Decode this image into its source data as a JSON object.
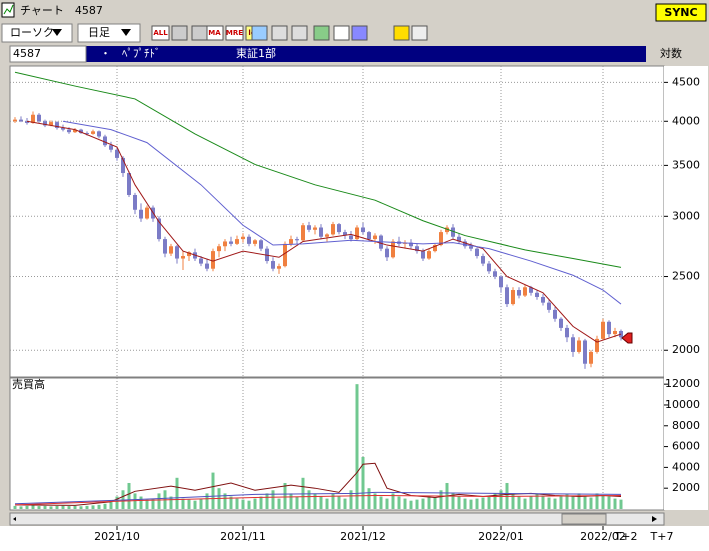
{
  "window": {
    "title": "チャート　4587",
    "sync": "SYNC"
  },
  "toolbar": {
    "chart_kind": "ローソク",
    "period": "日足",
    "icons": [
      "ALL",
      "MA",
      "MRE",
      "log"
    ]
  },
  "info": {
    "code": "4587",
    "name": "・　ﾍﾟﾌﾟﾁﾄﾞ",
    "market": "東証1部",
    "scale": "対数"
  },
  "future_ticks": [
    "T+2",
    "T+7"
  ],
  "chart_data": [
    {
      "type": "candlestick",
      "log": true,
      "grid": true,
      "up_color": "#f08040",
      "down_color": "#7b7bc6",
      "categories": [
        null,
        null,
        null,
        null,
        null,
        null,
        null,
        null,
        null,
        null,
        null,
        null,
        null,
        null,
        null,
        null,
        null,
        "2021/10",
        null,
        null,
        null,
        null,
        null,
        null,
        null,
        null,
        null,
        null,
        null,
        null,
        null,
        null,
        null,
        null,
        null,
        null,
        null,
        null,
        "2021/11",
        null,
        null,
        null,
        null,
        null,
        null,
        null,
        null,
        null,
        null,
        null,
        null,
        null,
        null,
        null,
        null,
        null,
        null,
        null,
        "2021/12",
        null,
        null,
        null,
        null,
        null,
        null,
        null,
        null,
        null,
        null,
        null,
        null,
        null,
        null,
        null,
        null,
        null,
        null,
        null,
        null,
        null,
        null,
        "2022/01",
        null,
        null,
        null,
        null,
        null,
        null,
        null,
        null,
        null,
        null,
        null,
        null,
        null,
        null,
        null,
        null,
        "2022/02",
        null,
        null,
        null
      ],
      "ohlc": [
        [
          4000,
          4050,
          3980,
          4020
        ],
        [
          4020,
          4060,
          3990,
          4000
        ],
        [
          4000,
          4040,
          3960,
          3980
        ],
        [
          3980,
          4120,
          3970,
          4080
        ],
        [
          4080,
          4100,
          3980,
          4000
        ],
        [
          4000,
          4020,
          3930,
          3950
        ],
        [
          3950,
          4010,
          3940,
          3990
        ],
        [
          3990,
          4000,
          3900,
          3920
        ],
        [
          3920,
          3960,
          3880,
          3900
        ],
        [
          3900,
          3930,
          3850,
          3870
        ],
        [
          3870,
          3920,
          3860,
          3900
        ],
        [
          3900,
          3910,
          3850,
          3860
        ],
        [
          3860,
          3880,
          3830,
          3850
        ],
        [
          3850,
          3900,
          3840,
          3880
        ],
        [
          3880,
          3890,
          3800,
          3820
        ],
        [
          3820,
          3840,
          3700,
          3720
        ],
        [
          3720,
          3760,
          3640,
          3670
        ],
        [
          3670,
          3690,
          3550,
          3580
        ],
        [
          3580,
          3600,
          3380,
          3420
        ],
        [
          3420,
          3440,
          3180,
          3200
        ],
        [
          3200,
          3220,
          3020,
          3060
        ],
        [
          3060,
          3120,
          2950,
          2980
        ],
        [
          2980,
          3100,
          2970,
          3080
        ],
        [
          3080,
          3100,
          2950,
          2980
        ],
        [
          2980,
          3000,
          2780,
          2800
        ],
        [
          2800,
          2820,
          2650,
          2680
        ],
        [
          2680,
          2760,
          2660,
          2740
        ],
        [
          2740,
          2750,
          2600,
          2640
        ],
        [
          2640,
          2700,
          2550,
          2660
        ],
        [
          2660,
          2700,
          2620,
          2690
        ],
        [
          2690,
          2720,
          2620,
          2640
        ],
        [
          2640,
          2660,
          2580,
          2600
        ],
        [
          2600,
          2640,
          2540,
          2560
        ],
        [
          2560,
          2720,
          2540,
          2700
        ],
        [
          2700,
          2760,
          2650,
          2740
        ],
        [
          2740,
          2800,
          2700,
          2780
        ],
        [
          2780,
          2820,
          2740,
          2760
        ],
        [
          2760,
          2830,
          2750,
          2800
        ],
        [
          2800,
          2850,
          2770,
          2820
        ],
        [
          2820,
          2840,
          2740,
          2760
        ],
        [
          2760,
          2800,
          2740,
          2790
        ],
        [
          2790,
          2800,
          2700,
          2720
        ],
        [
          2720,
          2740,
          2600,
          2620
        ],
        [
          2620,
          2650,
          2540,
          2560
        ],
        [
          2560,
          2600,
          2520,
          2580
        ],
        [
          2580,
          2780,
          2570,
          2760
        ],
        [
          2760,
          2830,
          2740,
          2800
        ],
        [
          2800,
          2820,
          2760,
          2790
        ],
        [
          2790,
          2940,
          2780,
          2920
        ],
        [
          2920,
          2950,
          2860,
          2880
        ],
        [
          2880,
          2920,
          2840,
          2900
        ],
        [
          2900,
          2930,
          2800,
          2820
        ],
        [
          2820,
          2850,
          2780,
          2840
        ],
        [
          2840,
          2950,
          2830,
          2930
        ],
        [
          2930,
          2940,
          2840,
          2860
        ],
        [
          2860,
          2880,
          2800,
          2830
        ],
        [
          2830,
          2870,
          2780,
          2800
        ],
        [
          2800,
          2920,
          2790,
          2900
        ],
        [
          2900,
          2940,
          2840,
          2860
        ],
        [
          2860,
          2870,
          2780,
          2800
        ],
        [
          2800,
          2850,
          2760,
          2830
        ],
        [
          2830,
          2840,
          2700,
          2720
        ],
        [
          2720,
          2740,
          2620,
          2650
        ],
        [
          2650,
          2800,
          2640,
          2780
        ],
        [
          2780,
          2820,
          2740,
          2760
        ],
        [
          2760,
          2790,
          2720,
          2770
        ],
        [
          2770,
          2800,
          2720,
          2740
        ],
        [
          2740,
          2760,
          2680,
          2700
        ],
        [
          2700,
          2720,
          2620,
          2640
        ],
        [
          2640,
          2720,
          2630,
          2700
        ],
        [
          2700,
          2760,
          2690,
          2750
        ],
        [
          2750,
          2880,
          2740,
          2860
        ],
        [
          2860,
          2920,
          2840,
          2900
        ],
        [
          2900,
          2930,
          2800,
          2820
        ],
        [
          2820,
          2850,
          2760,
          2780
        ],
        [
          2780,
          2800,
          2720,
          2740
        ],
        [
          2740,
          2770,
          2700,
          2720
        ],
        [
          2720,
          2730,
          2640,
          2660
        ],
        [
          2660,
          2680,
          2580,
          2600
        ],
        [
          2600,
          2620,
          2520,
          2540
        ],
        [
          2540,
          2560,
          2480,
          2500
        ],
        [
          2500,
          2510,
          2380,
          2420
        ],
        [
          2420,
          2440,
          2280,
          2300
        ],
        [
          2300,
          2420,
          2290,
          2400
        ],
        [
          2400,
          2420,
          2340,
          2360
        ],
        [
          2360,
          2440,
          2350,
          2420
        ],
        [
          2420,
          2430,
          2360,
          2380
        ],
        [
          2380,
          2400,
          2330,
          2350
        ],
        [
          2350,
          2370,
          2290,
          2310
        ],
        [
          2310,
          2330,
          2240,
          2260
        ],
        [
          2260,
          2280,
          2180,
          2200
        ],
        [
          2200,
          2210,
          2120,
          2140
        ],
        [
          2140,
          2160,
          2050,
          2080
        ],
        [
          2080,
          2100,
          1960,
          1990
        ],
        [
          1990,
          2080,
          1980,
          2060
        ],
        [
          2060,
          2070,
          1890,
          1920
        ],
        [
          1920,
          2000,
          1900,
          1990
        ],
        [
          1990,
          2090,
          1980,
          2070
        ],
        [
          2070,
          2200,
          2060,
          2180
        ],
        [
          2180,
          2190,
          2080,
          2100
        ],
        [
          2100,
          2140,
          2080,
          2120
        ],
        [
          2120,
          2130,
          2060,
          2080
        ]
      ],
      "lines": [
        {
          "color": "#a01818",
          "x": [
            2,
            10,
            17,
            20,
            24,
            28,
            33,
            38,
            44,
            48,
            56,
            62,
            68,
            73,
            78,
            82,
            88,
            93,
            97,
            101
          ],
          "values": [
            4000,
            3900,
            3700,
            3300,
            2950,
            2700,
            2620,
            2700,
            2650,
            2780,
            2840,
            2750,
            2700,
            2800,
            2720,
            2500,
            2380,
            2150,
            2050,
            2100
          ]
        },
        {
          "color": "#6060d0",
          "x": [
            8,
            16,
            22,
            31,
            38,
            43,
            48,
            56,
            68,
            73,
            79,
            86,
            93,
            98,
            101
          ],
          "values": [
            4000,
            3900,
            3750,
            3300,
            2920,
            2750,
            2760,
            2790,
            2760,
            2770,
            2720,
            2620,
            2510,
            2400,
            2300
          ]
        },
        {
          "color": "#1a8a1a",
          "x": [
            0,
            10,
            20,
            30,
            40,
            50,
            60,
            68,
            75,
            85,
            93,
            101
          ],
          "values": [
            4640,
            4450,
            4280,
            3850,
            3510,
            3300,
            3150,
            2960,
            2830,
            2710,
            2640,
            2570
          ]
        }
      ],
      "ylim": [
        1850,
        4700
      ],
      "yticks": [
        2000,
        2500,
        3000,
        3500,
        4000,
        4500
      ]
    },
    {
      "type": "bar",
      "label": "売買高",
      "color": "#70c890",
      "grid": false,
      "values": [
        300,
        250,
        300,
        350,
        280,
        300,
        250,
        300,
        320,
        280,
        300,
        260,
        300,
        350,
        400,
        500,
        800,
        1200,
        1800,
        2500,
        1500,
        1200,
        900,
        1000,
        1500,
        1800,
        1200,
        3000,
        1000,
        900,
        800,
        1000,
        1500,
        3500,
        2000,
        1500,
        1200,
        1000,
        900,
        800,
        1000,
        1200,
        1500,
        1800,
        1000,
        2500,
        1500,
        1200,
        3000,
        1800,
        1500,
        1200,
        1000,
        1500,
        1200,
        1000,
        1800,
        12000,
        5000,
        2000,
        1500,
        1200,
        1000,
        1500,
        1200,
        1000,
        800,
        900,
        1000,
        1200,
        1100,
        1800,
        2500,
        1500,
        1200,
        1000,
        900,
        1000,
        1100,
        1200,
        1500,
        1800,
        2500,
        1500,
        1200,
        1000,
        1200,
        1500,
        1300,
        1100,
        1000,
        1200,
        1400,
        1300,
        1500,
        1200,
        1100,
        1500,
        1300,
        1200,
        1000,
        900
      ],
      "lines": [
        {
          "color": "#801010",
          "x": [
            0,
            10,
            16,
            20,
            26,
            30,
            36,
            40,
            46,
            50,
            54,
            57,
            58,
            60,
            62,
            66,
            70,
            74,
            78,
            82,
            86,
            90,
            94,
            98,
            101
          ],
          "values": [
            400,
            350,
            700,
            1700,
            2200,
            1800,
            2500,
            1800,
            2300,
            2000,
            1600,
            3500,
            4300,
            4400,
            2000,
            1300,
            1100,
            1400,
            1200,
            1400,
            1500,
            1300,
            1200,
            1300,
            1200
          ]
        },
        {
          "color": "#5050c0",
          "x": [
            0,
            20,
            40,
            57,
            60,
            80,
            101
          ],
          "values": [
            500,
            900,
            1400,
            1500,
            1600,
            1500,
            1400
          ]
        },
        {
          "color": "#e03030",
          "x": [
            0,
            20,
            40,
            60,
            80,
            101
          ],
          "values": [
            400,
            800,
            1100,
            1300,
            1200,
            1300
          ]
        }
      ],
      "ylim": [
        0,
        12400
      ],
      "yticks": [
        2000,
        4000,
        6000,
        8000,
        10000,
        12000
      ]
    }
  ]
}
